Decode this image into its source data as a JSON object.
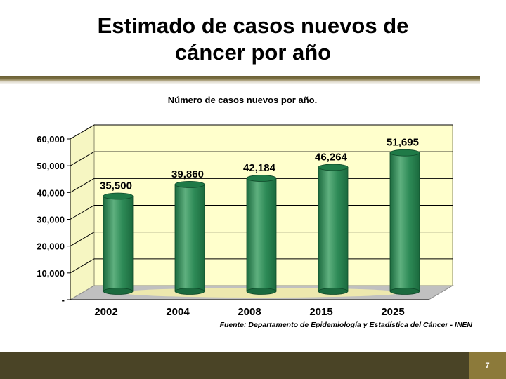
{
  "slide": {
    "title": "Estimado de casos nuevos de\ncáncer por año",
    "page_number": "7"
  },
  "chart_data": {
    "type": "bar",
    "title": "Número de casos nuevos por año.",
    "categories": [
      "2002",
      "2004",
      "2008",
      "2015",
      "2025"
    ],
    "values": [
      35500,
      39860,
      42184,
      46264,
      51695
    ],
    "value_labels": [
      "35,500",
      "39,860",
      "42,184",
      "46,264",
      "51,695"
    ],
    "y_ticks": [
      "-",
      "10,000",
      "20,000",
      "30,000",
      "40,000",
      "50,000",
      "60,000"
    ],
    "ylim": [
      0,
      60000
    ],
    "xlabel": "",
    "ylabel": "",
    "grid": true,
    "source": "Fuente: Departamento de Epidemiología y Estadística del Cáncer - INEN",
    "colors": {
      "bar": "#2e8b57",
      "bar_dark": "#1b6a3e",
      "bar_light": "#5fb07f",
      "wall": "#ffffcc",
      "floor": "#c0c0c0"
    }
  }
}
